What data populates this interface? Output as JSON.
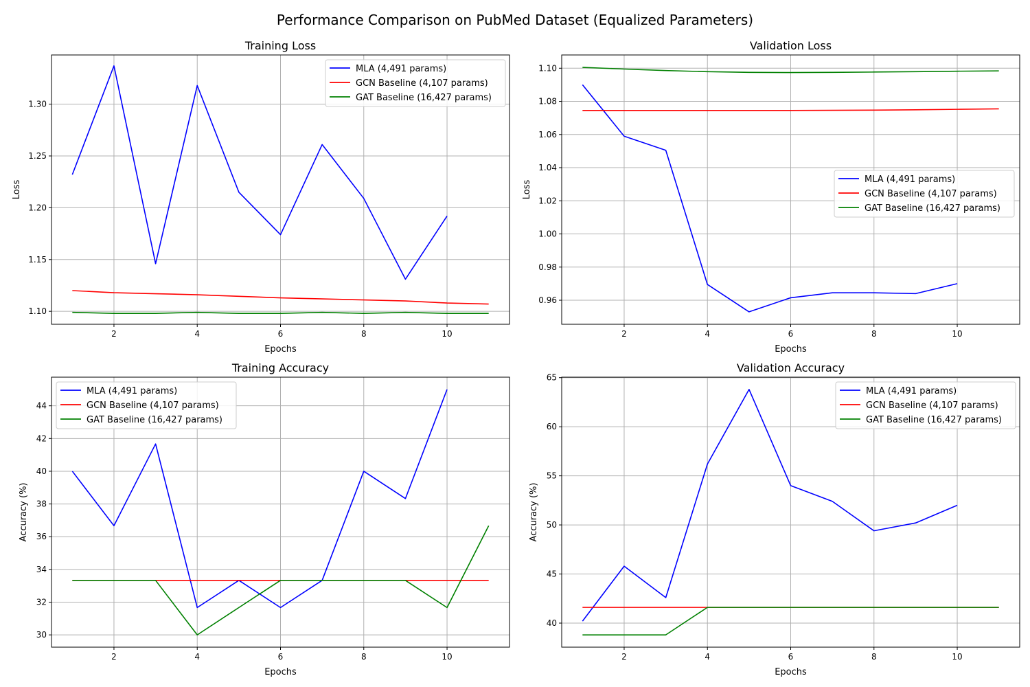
{
  "figure": {
    "title": "Performance Comparison on PubMed Dataset (Equalized Parameters)"
  },
  "colors": {
    "mla": "#0000ff",
    "gcn": "#ff0000",
    "gat": "#008000",
    "grid": "#b0b0b0"
  },
  "chart_data": [
    {
      "type": "line",
      "title": "Training Loss",
      "xlabel": "Epochs",
      "ylabel": "Loss",
      "xlim": [
        0.5,
        11.5
      ],
      "ylim": [
        1.0875,
        1.3475
      ],
      "xticks": [
        2,
        4,
        6,
        8,
        10
      ],
      "yticks": [
        1.1,
        1.15,
        1.2,
        1.25,
        1.3
      ],
      "ytick_labels": [
        "1.10",
        "1.15",
        "1.20",
        "1.25",
        "1.30"
      ],
      "grid": true,
      "legend_loc": "upper right",
      "series": [
        {
          "name": "MLA (4,491 params)",
          "color": "#0000ff",
          "x": [
            1,
            2,
            3,
            4,
            5,
            6,
            7,
            8,
            9,
            10
          ],
          "y": [
            1.232,
            1.337,
            1.146,
            1.318,
            1.215,
            1.174,
            1.261,
            1.209,
            1.131,
            1.192
          ]
        },
        {
          "name": "GCN Baseline (4,107 params)",
          "color": "#ff0000",
          "x": [
            1,
            2,
            3,
            4,
            5,
            6,
            7,
            8,
            9,
            10,
            11
          ],
          "y": [
            1.12,
            1.118,
            1.117,
            1.116,
            1.1145,
            1.113,
            1.112,
            1.111,
            1.11,
            1.108,
            1.107
          ]
        },
        {
          "name": "GAT Baseline (16,427 params)",
          "color": "#008000",
          "x": [
            1,
            2,
            3,
            4,
            5,
            6,
            7,
            8,
            9,
            10,
            11
          ],
          "y": [
            1.099,
            1.098,
            1.098,
            1.099,
            1.098,
            1.098,
            1.099,
            1.098,
            1.099,
            1.098,
            1.098
          ]
        }
      ]
    },
    {
      "type": "line",
      "title": "Validation Loss",
      "xlabel": "Epochs",
      "ylabel": "Loss",
      "xlim": [
        0.5,
        11.5
      ],
      "ylim": [
        0.9455,
        1.108
      ],
      "xticks": [
        2,
        4,
        6,
        8,
        10
      ],
      "yticks": [
        0.96,
        0.98,
        1.0,
        1.02,
        1.04,
        1.06,
        1.08,
        1.1
      ],
      "ytick_labels": [
        "0.96",
        "0.98",
        "1.00",
        "1.02",
        "1.04",
        "1.06",
        "1.08",
        "1.10"
      ],
      "grid": true,
      "legend_loc": "center right",
      "series": [
        {
          "name": "MLA (4,491 params)",
          "color": "#0000ff",
          "x": [
            1,
            2,
            3,
            4,
            5,
            6,
            7,
            8,
            9,
            10
          ],
          "y": [
            1.09,
            1.059,
            1.0505,
            0.9695,
            0.953,
            0.9615,
            0.9645,
            0.9645,
            0.964,
            0.97
          ]
        },
        {
          "name": "GCN Baseline (4,107 params)",
          "color": "#ff0000",
          "x": [
            1,
            2,
            3,
            4,
            5,
            6,
            7,
            8,
            9,
            10,
            11
          ],
          "y": [
            1.0745,
            1.0745,
            1.0745,
            1.0745,
            1.0745,
            1.0745,
            1.0746,
            1.0747,
            1.0749,
            1.0752,
            1.0755
          ]
        },
        {
          "name": "GAT Baseline (16,427 params)",
          "color": "#008000",
          "x": [
            1,
            2,
            3,
            4,
            5,
            6,
            7,
            8,
            9,
            10,
            11
          ],
          "y": [
            1.1005,
            1.0995,
            1.0986,
            1.0979,
            1.0975,
            1.0974,
            1.0975,
            1.0977,
            1.0979,
            1.0982,
            1.0984
          ]
        }
      ]
    },
    {
      "type": "line",
      "title": "Training Accuracy",
      "xlabel": "Epochs",
      "ylabel": "Accuracy (%)",
      "xlim": [
        0.5,
        11.5
      ],
      "ylim": [
        29.25,
        45.75
      ],
      "xticks": [
        2,
        4,
        6,
        8,
        10
      ],
      "yticks": [
        30,
        32,
        34,
        36,
        38,
        40,
        42,
        44
      ],
      "ytick_labels": [
        "30",
        "32",
        "34",
        "36",
        "38",
        "40",
        "42",
        "44"
      ],
      "grid": true,
      "legend_loc": "upper left",
      "series": [
        {
          "name": "MLA (4,491 params)",
          "color": "#0000ff",
          "x": [
            1,
            2,
            3,
            4,
            5,
            6,
            7,
            8,
            9,
            10
          ],
          "y": [
            40.0,
            36.67,
            41.67,
            31.67,
            33.33,
            31.67,
            33.33,
            40.0,
            38.33,
            45.0
          ]
        },
        {
          "name": "GCN Baseline (4,107 params)",
          "color": "#ff0000",
          "x": [
            1,
            2,
            3,
            4,
            5,
            6,
            7,
            8,
            9,
            10,
            11
          ],
          "y": [
            33.33,
            33.33,
            33.33,
            33.33,
            33.33,
            33.33,
            33.33,
            33.33,
            33.33,
            33.33,
            33.33
          ]
        },
        {
          "name": "GAT Baseline (16,427 params)",
          "color": "#008000",
          "x": [
            1,
            2,
            3,
            4,
            5,
            6,
            7,
            8,
            9,
            10,
            11
          ],
          "y": [
            33.33,
            33.33,
            33.33,
            30.0,
            31.67,
            33.33,
            33.33,
            33.33,
            33.33,
            31.67,
            36.67
          ]
        }
      ]
    },
    {
      "type": "line",
      "title": "Validation Accuracy",
      "xlabel": "Epochs",
      "ylabel": "Accuracy (%)",
      "xlim": [
        0.5,
        11.5
      ],
      "ylim": [
        37.55,
        65.05
      ],
      "xticks": [
        2,
        4,
        6,
        8,
        10
      ],
      "yticks": [
        40,
        45,
        50,
        55,
        60,
        65
      ],
      "ytick_labels": [
        "40",
        "45",
        "50",
        "55",
        "60",
        "65"
      ],
      "grid": true,
      "legend_loc": "upper right",
      "series": [
        {
          "name": "MLA (4,491 params)",
          "color": "#0000ff",
          "x": [
            1,
            2,
            3,
            4,
            5,
            6,
            7,
            8,
            9,
            10
          ],
          "y": [
            40.2,
            45.8,
            42.6,
            56.2,
            63.8,
            54.0,
            52.4,
            49.4,
            50.2,
            52.0
          ]
        },
        {
          "name": "GCN Baseline (4,107 params)",
          "color": "#ff0000",
          "x": [
            1,
            2,
            3,
            4,
            5,
            6,
            7,
            8,
            9,
            10,
            11
          ],
          "y": [
            41.6,
            41.6,
            41.6,
            41.6,
            41.6,
            41.6,
            41.6,
            41.6,
            41.6,
            41.6,
            41.6
          ]
        },
        {
          "name": "GAT Baseline (16,427 params)",
          "color": "#008000",
          "x": [
            1,
            2,
            3,
            4,
            5,
            6,
            7,
            8,
            9,
            10,
            11
          ],
          "y": [
            38.8,
            38.8,
            38.8,
            41.6,
            41.6,
            41.6,
            41.6,
            41.6,
            41.6,
            41.6,
            41.6
          ]
        }
      ]
    }
  ]
}
